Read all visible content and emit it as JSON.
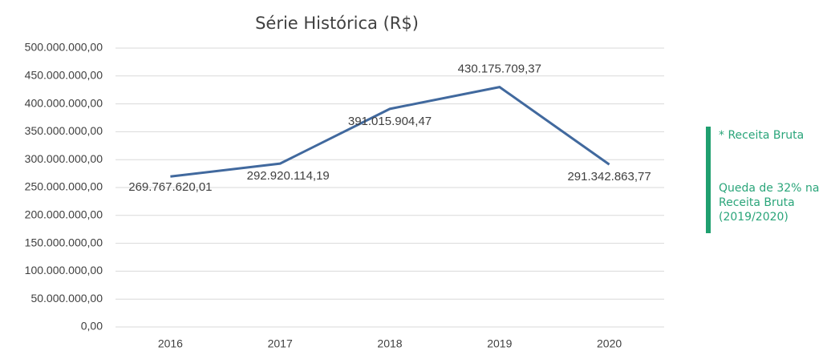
{
  "chart_data": {
    "type": "line",
    "title": "Série Histórica (R$)",
    "categories": [
      "2016",
      "2017",
      "2018",
      "2019",
      "2020"
    ],
    "series": [
      {
        "name": "Receita Bruta",
        "color": "#41699e",
        "values": [
          269767620.01,
          292920114.19,
          391015904.47,
          430175709.37,
          291342863.77
        ],
        "value_labels": [
          "269.767.620,01",
          "292.920.114,19",
          "391.015.904,47",
          "430.175.709,37",
          "291.342.863,77"
        ]
      }
    ],
    "ylim": [
      0,
      500000000
    ],
    "yticks": [
      {
        "value": 0,
        "label": "0,00"
      },
      {
        "value": 50000000,
        "label": "50.000.000,00"
      },
      {
        "value": 100000000,
        "label": "100.000.000,00"
      },
      {
        "value": 150000000,
        "label": "150.000.000,00"
      },
      {
        "value": 200000000,
        "label": "200.000.000,00"
      },
      {
        "value": 250000000,
        "label": "250.000.000,00"
      },
      {
        "value": 300000000,
        "label": "300.000.000,00"
      },
      {
        "value": 350000000,
        "label": "350.000.000,00"
      },
      {
        "value": 400000000,
        "label": "400.000.000,00"
      },
      {
        "value": 450000000,
        "label": "450.000.000,00"
      },
      {
        "value": 500000000,
        "label": "500.000.000,00"
      }
    ],
    "grid": true,
    "annotations": [
      "* Receita Bruta",
      "Queda de 32% na Receita Bruta (2019/2020)"
    ]
  }
}
